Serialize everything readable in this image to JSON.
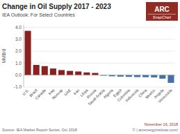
{
  "chart_data": {
    "type": "bar",
    "title": "Change in Oil Supply 2017 - 2023",
    "subtitle": "IEA Outlook: For Select Countries",
    "y_label": "MMB/d",
    "categories": [
      "U.S.",
      "Brazil",
      "Canada",
      "Iraq",
      "Norway",
      "UAE",
      "Iran",
      "Libya",
      "Russia",
      "Saudi Arabia",
      "Algeria",
      "Egypt",
      "Colombia",
      "Indonesia",
      "China",
      "Mexico",
      "Angola",
      "Venezuela"
    ],
    "values": [
      3.7,
      0.85,
      0.75,
      0.55,
      0.42,
      0.35,
      0.3,
      0.22,
      0.18,
      -0.05,
      -0.1,
      -0.13,
      -0.15,
      -0.17,
      -0.18,
      -0.2,
      -0.3,
      -0.65
    ],
    "colors": [
      "#8b2020",
      "#8b2020",
      "#8b2020",
      "#8b2020",
      "#8b2020",
      "#8b2020",
      "#8b2020",
      "#8b2020",
      "#8b2020",
      "#4472a8",
      "#4472a8",
      "#4472a8",
      "#4472a8",
      "#4472a8",
      "#4472a8",
      "#4472a8",
      "#4472a8",
      "#4472a8"
    ],
    "ylim": [
      -1.0,
      4.2
    ],
    "yticks": [
      {
        "value": -1.0,
        "label": "-1.0"
      },
      {
        "value": 0.0,
        "label": "0.0"
      },
      {
        "value": 1.0,
        "label": "1.0"
      },
      {
        "value": 2.0,
        "label": "2.0"
      },
      {
        "value": 3.0,
        "label": "3.0"
      },
      {
        "value": 4.0,
        "label": "4.0"
      }
    ],
    "grid": true,
    "annotations": [
      "ARC",
      "SnapChart",
      "Source: IEA Market Report Series, Oct 2018",
      "November 16, 2018",
      "© | arcenergyinstitute.com/"
    ]
  }
}
